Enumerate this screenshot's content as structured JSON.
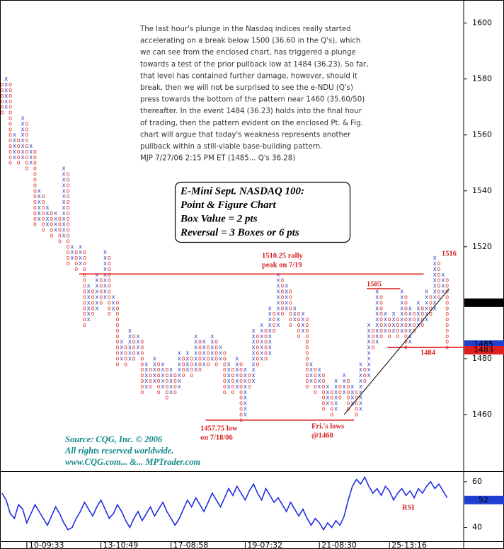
{
  "chart_data": [
    {
      "type": "pointfigure",
      "box_size": 2,
      "ylim": [
        1440,
        1608
      ],
      "yticks": [
        1460,
        1480,
        1500,
        1520,
        1540,
        1560,
        1580,
        1600
      ],
      "xlim": [
        -0.5,
        112
      ],
      "x_color": "#3048c8",
      "o_color": "#e0302a",
      "columns": [
        {
          "box": "O",
          "low": 1568,
          "high": 1578
        },
        {
          "box": "X",
          "low": 1570,
          "high": 1580
        },
        {
          "box": "O",
          "low": 1550,
          "high": 1578
        },
        {
          "box": "X",
          "low": 1552,
          "high": 1560
        },
        {
          "box": "O",
          "low": 1550,
          "high": 1558
        },
        {
          "box": "X",
          "low": 1552,
          "high": 1566
        },
        {
          "box": "O",
          "low": 1548,
          "high": 1564
        },
        {
          "box": "X",
          "low": 1550,
          "high": 1556
        },
        {
          "box": "O",
          "low": 1528,
          "high": 1554
        },
        {
          "box": "X",
          "low": 1530,
          "high": 1540
        },
        {
          "box": "O",
          "low": 1526,
          "high": 1538
        },
        {
          "box": "X",
          "low": 1528,
          "high": 1534
        },
        {
          "box": "O",
          "low": 1524,
          "high": 1532
        },
        {
          "box": "X",
          "low": 1526,
          "high": 1532
        },
        {
          "box": "O",
          "low": 1522,
          "high": 1530
        },
        {
          "box": "X",
          "low": 1524,
          "high": 1548
        },
        {
          "box": "O",
          "low": 1514,
          "high": 1546
        },
        {
          "box": "X",
          "low": 1516,
          "high": 1520
        },
        {
          "box": "O",
          "low": 1512,
          "high": 1518
        },
        {
          "box": "X",
          "low": 1514,
          "high": 1520
        },
        {
          "box": "O",
          "low": 1492,
          "high": 1518
        },
        {
          "box": "X",
          "low": 1494,
          "high": 1506
        },
        {
          "box": "O",
          "low": 1496,
          "high": 1504
        },
        {
          "box": "X",
          "low": 1498,
          "high": 1510
        },
        {
          "box": "O",
          "low": 1500,
          "high": 1508
        },
        {
          "box": "X",
          "low": 1502,
          "high": 1518
        },
        {
          "box": "O",
          "low": 1496,
          "high": 1516
        },
        {
          "box": "X",
          "low": 1498,
          "high": 1502
        },
        {
          "box": "O",
          "low": 1478,
          "high": 1500
        },
        {
          "box": "X",
          "low": 1480,
          "high": 1486
        },
        {
          "box": "O",
          "low": 1478,
          "high": 1484
        },
        {
          "box": "X",
          "low": 1480,
          "high": 1490
        },
        {
          "box": "O",
          "low": 1480,
          "high": 1488
        },
        {
          "box": "X",
          "low": 1482,
          "high": 1488
        },
        {
          "box": "O",
          "low": 1468,
          "high": 1486
        },
        {
          "box": "X",
          "low": 1470,
          "high": 1478
        },
        {
          "box": "O",
          "low": 1470,
          "high": 1476
        },
        {
          "box": "X",
          "low": 1472,
          "high": 1480
        },
        {
          "box": "O",
          "low": 1468,
          "high": 1478
        },
        {
          "box": "X",
          "low": 1470,
          "high": 1478
        },
        {
          "box": "O",
          "low": 1466,
          "high": 1476
        },
        {
          "box": "X",
          "low": 1468,
          "high": 1476
        },
        {
          "box": "O",
          "low": 1468,
          "high": 1474
        },
        {
          "box": "X",
          "low": 1470,
          "high": 1482
        },
        {
          "box": "O",
          "low": 1474,
          "high": 1480
        },
        {
          "box": "X",
          "low": 1476,
          "high": 1482
        },
        {
          "box": "O",
          "low": 1474,
          "high": 1480
        },
        {
          "box": "X",
          "low": 1476,
          "high": 1488
        },
        {
          "box": "O",
          "low": 1476,
          "high": 1486
        },
        {
          "box": "X",
          "low": 1478,
          "high": 1486
        },
        {
          "box": "O",
          "low": 1478,
          "high": 1484
        },
        {
          "box": "X",
          "low": 1480,
          "high": 1488
        },
        {
          "box": "O",
          "low": 1478,
          "high": 1486
        },
        {
          "box": "X",
          "low": 1480,
          "high": 1484
        },
        {
          "box": "O",
          "low": 1468,
          "high": 1482
        },
        {
          "box": "X",
          "low": 1470,
          "high": 1478
        },
        {
          "box": "O",
          "low": 1468,
          "high": 1476
        },
        {
          "box": "X",
          "low": 1470,
          "high": 1480
        },
        {
          "box": "O",
          "low": 1458,
          "high": 1478
        },
        {
          "box": "X",
          "low": 1460,
          "high": 1476
        },
        {
          "box": "O",
          "low": 1470,
          "high": 1474
        },
        {
          "box": "X",
          "low": 1472,
          "high": 1490
        },
        {
          "box": "O",
          "low": 1478,
          "high": 1488
        },
        {
          "box": "X",
          "low": 1480,
          "high": 1492
        },
        {
          "box": "O",
          "low": 1480,
          "high": 1490
        },
        {
          "box": "X",
          "low": 1482,
          "high": 1498
        },
        {
          "box": "O",
          "low": 1490,
          "high": 1496
        },
        {
          "box": "X",
          "low": 1492,
          "high": 1510
        },
        {
          "box": "O",
          "low": 1496,
          "high": 1508
        },
        {
          "box": "X",
          "low": 1498,
          "high": 1506
        },
        {
          "box": "O",
          "low": 1492,
          "high": 1504
        },
        {
          "box": "X",
          "low": 1494,
          "high": 1498
        },
        {
          "box": "O",
          "low": 1488,
          "high": 1496
        },
        {
          "box": "X",
          "low": 1490,
          "high": 1496
        },
        {
          "box": "O",
          "low": 1470,
          "high": 1494
        },
        {
          "box": "X",
          "low": 1472,
          "high": 1478
        },
        {
          "box": "O",
          "low": 1468,
          "high": 1476
        },
        {
          "box": "X",
          "low": 1470,
          "high": 1476
        },
        {
          "box": "O",
          "low": 1462,
          "high": 1474
        },
        {
          "box": "X",
          "low": 1464,
          "high": 1470
        },
        {
          "box": "O",
          "low": 1460,
          "high": 1468
        },
        {
          "box": "X",
          "low": 1462,
          "high": 1472
        },
        {
          "box": "O",
          "low": 1466,
          "high": 1470
        },
        {
          "box": "X",
          "low": 1468,
          "high": 1474
        },
        {
          "box": "O",
          "low": 1462,
          "high": 1472
        },
        {
          "box": "X",
          "low": 1464,
          "high": 1470
        },
        {
          "box": "O",
          "low": 1460,
          "high": 1468
        },
        {
          "box": "X",
          "low": 1462,
          "high": 1478
        },
        {
          "box": "O",
          "low": 1472,
          "high": 1476
        },
        {
          "box": "X",
          "low": 1474,
          "high": 1492
        },
        {
          "box": "O",
          "low": 1484,
          "high": 1490
        },
        {
          "box": "X",
          "low": 1486,
          "high": 1504
        },
        {
          "box": "O",
          "low": 1488,
          "high": 1502
        },
        {
          "box": "X",
          "low": 1490,
          "high": 1496
        },
        {
          "box": "O",
          "low": 1488,
          "high": 1494
        },
        {
          "box": "X",
          "low": 1490,
          "high": 1496
        },
        {
          "box": "O",
          "low": 1488,
          "high": 1494
        },
        {
          "box": "X",
          "low": 1490,
          "high": 1504
        },
        {
          "box": "O",
          "low": 1484,
          "high": 1502
        },
        {
          "box": "X",
          "low": 1486,
          "high": 1498
        },
        {
          "box": "O",
          "low": 1490,
          "high": 1496
        },
        {
          "box": "X",
          "low": 1492,
          "high": 1500
        },
        {
          "box": "O",
          "low": 1492,
          "high": 1498
        },
        {
          "box": "X",
          "low": 1494,
          "high": 1504
        },
        {
          "box": "O",
          "low": 1496,
          "high": 1502
        },
        {
          "box": "X",
          "low": 1498,
          "high": 1516
        },
        {
          "box": "O",
          "low": 1502,
          "high": 1514
        },
        {
          "box": "X",
          "low": 1504,
          "high": 1510
        },
        {
          "box": "O",
          "low": 1484,
          "high": 1508
        }
      ],
      "reference_lines": [
        {
          "value": 1510.25,
          "from": 18.7,
          "to": 102.3,
          "color": "#e02020"
        },
        {
          "value": 1458,
          "from": 49.4,
          "to": 85.4,
          "color": "#e02020"
        },
        {
          "value": 1505,
          "from": 88.5,
          "to": 96.6,
          "color": "#e02020"
        },
        {
          "value": 1484,
          "from": 93.5,
          "to": 112,
          "color": "#e02020"
        }
      ],
      "trendline": {
        "from": [
          83,
          1460
        ],
        "to": [
          108.5,
          1505
        ],
        "color": "#000000"
      },
      "annotations": [
        {
          "lines": [
            "1510.25 rally",
            "peak on 7/19"
          ]
        },
        {
          "lines": [
            "1505"
          ]
        },
        {
          "lines": [
            "1484"
          ]
        },
        {
          "lines": [
            "1516"
          ]
        },
        {
          "lines": [
            "1457.75 low",
            "on 7/18/06"
          ]
        },
        {
          "lines": [
            "Fri.'s lows",
            "@1460"
          ]
        }
      ],
      "price_markers": [
        {
          "value": 1500,
          "color": "#000000"
        },
        {
          "value": 1485,
          "color": "#1f3fd0"
        },
        {
          "value": 1483,
          "color": "#e02020"
        }
      ],
      "commentary": [
        "The last hour's plunge in the Nasdaq indices really started",
        "accelerating on a break below 1500 (36.60 in the Q's), which",
        "we can see from the enclosed chart, has triggered a plunge",
        "towards a test of the prior pullback low at 1484 (36.23). So far,",
        "that level has contained further damage, however, should it",
        "break, then we will not be surprised to see the e-NDU (Q's)",
        "press towards the bottom of the pattern near 1460 (35.60/50)",
        "thereafter. In the event 1484 (36.23) holds into the final hour",
        "of trading, then the pattern evident on the enclosed Pt. & Fig.",
        "chart will argue that today's weakness represents another",
        "pullback within a still-viable base-building pattern.",
        "MJP  7/27/06 2:15 PM ET  (1485... Q's 36.28)"
      ],
      "info_box": [
        "E-Mini Sept. NASDAQ 100:",
        "Point & Figure Chart",
        "Box Value = 2 pts",
        "Reversal = 3 Boxes or 6 pts"
      ],
      "source_note": [
        "Source: CQG, Inc. © 2006",
        "All rights reserved worldwide.",
        "www.CQG.com... &... MPTrader.com"
      ]
    },
    {
      "type": "line",
      "label": "RSI",
      "color": "#1f2fe0",
      "ylim": [
        34,
        64
      ],
      "yticks": [
        40,
        60
      ],
      "xlim": [
        -0.5,
        112
      ],
      "xticks": [
        {
          "value": 6,
          "label": "10-09:33"
        },
        {
          "value": 24,
          "label": "13-10:49"
        },
        {
          "value": 41,
          "label": "17-08:58"
        },
        {
          "value": 59,
          "label": "19-07:32"
        },
        {
          "value": 77,
          "label": "21-08:30"
        },
        {
          "value": 94,
          "label": "25-13:16"
        }
      ],
      "value_marker": {
        "value": 52,
        "color": "#1f3fd0"
      },
      "values": [
        55,
        52,
        46,
        44,
        50,
        48,
        42,
        46,
        50,
        47,
        44,
        41,
        45,
        49,
        46,
        42,
        39,
        40,
        44,
        47,
        51,
        48,
        45,
        49,
        52,
        48,
        44,
        46,
        50,
        47,
        43,
        40,
        44,
        47,
        43,
        46,
        49,
        45,
        48,
        51,
        47,
        44,
        41,
        44,
        48,
        52,
        49,
        53,
        50,
        47,
        51,
        55,
        52,
        49,
        53,
        57,
        54,
        58,
        55,
        52,
        56,
        59,
        55,
        52,
        57,
        54,
        51,
        53,
        50,
        47,
        51,
        48,
        45,
        48,
        44,
        41,
        44,
        42,
        39,
        42,
        40,
        43,
        41,
        45,
        52,
        58,
        61,
        59,
        62,
        58,
        55,
        57,
        54,
        58,
        56,
        52,
        55,
        57,
        54,
        56,
        53,
        57,
        55,
        58,
        60,
        57,
        59,
        56,
        53
      ]
    }
  ]
}
